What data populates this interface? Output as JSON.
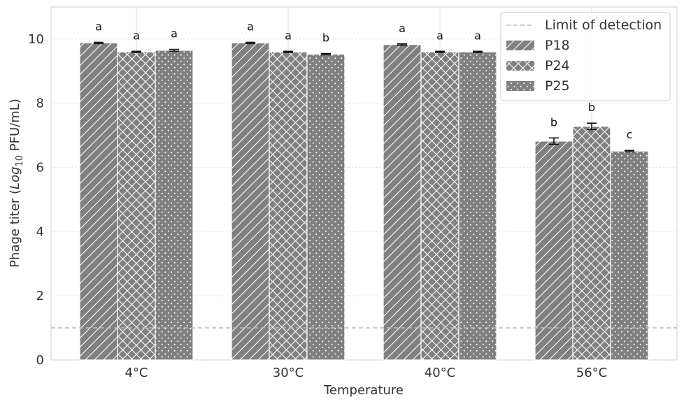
{
  "chart_data": {
    "type": "bar",
    "xlabel": "Temperature",
    "ylabel_prefix": "Phage titer (",
    "ylabel_log": "Log",
    "ylabel_sub": "10",
    "ylabel_suffix": " PFU/mL)",
    "categories": [
      "4°C",
      "30°C",
      "40°C",
      "56°C"
    ],
    "ylim": [
      0,
      11
    ],
    "yticks": [
      0,
      2,
      4,
      6,
      8,
      10
    ],
    "grid": true,
    "legend_position": "top-right",
    "bar_color": "#808080",
    "series": [
      {
        "name": "P18",
        "pattern": "diagonal-hatch",
        "values": [
          9.88,
          9.88,
          9.83,
          6.82
        ],
        "errors": [
          0.02,
          0.02,
          0.02,
          0.1
        ],
        "letters": [
          "a",
          "a",
          "a",
          "b"
        ]
      },
      {
        "name": "P24",
        "pattern": "cross-hatch",
        "values": [
          9.6,
          9.6,
          9.6,
          7.28
        ],
        "errors": [
          0.02,
          0.02,
          0.02,
          0.1
        ],
        "letters": [
          "a",
          "a",
          "a",
          "b"
        ]
      },
      {
        "name": "P25",
        "pattern": "dots",
        "values": [
          9.65,
          9.53,
          9.6,
          6.51
        ],
        "errors": [
          0.03,
          0.02,
          0.02,
          0.02
        ],
        "letters": [
          "a",
          "b",
          "a",
          "c"
        ]
      }
    ],
    "reference_line": {
      "name": "Limit of detection",
      "value": 1,
      "style": "dashed",
      "color": "#bbbbbb"
    }
  }
}
